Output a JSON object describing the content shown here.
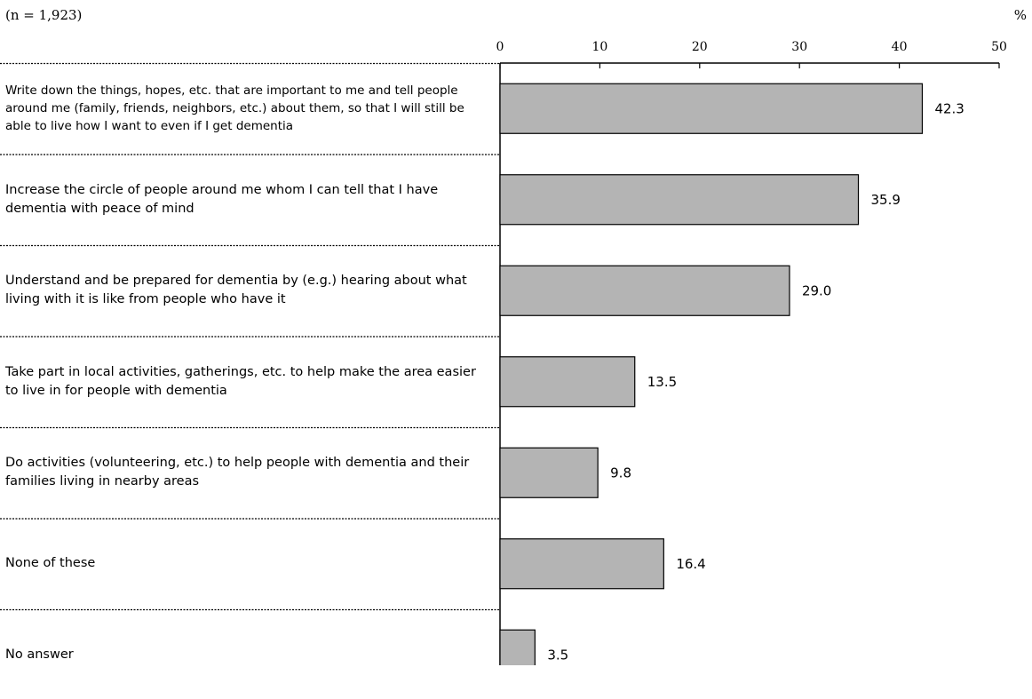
{
  "sample_note": "(n = 1,923)",
  "unit_label": "%",
  "chart_data": {
    "type": "bar",
    "orientation": "horizontal",
    "xlim": [
      0,
      50
    ],
    "ticks": [
      0,
      10,
      20,
      30,
      40,
      50
    ],
    "tick_labels": [
      "0",
      "10",
      "20",
      "30",
      "40",
      "50"
    ],
    "categories": [
      "Write down the things, hopes, etc. that are important to me and tell people around me (family, friends, neighbors, etc.) about them, so that I will still be able to live how I want to even if I get dementia",
      "Increase the circle of people around me whom I can tell that I have dementia with peace of mind",
      "Understand and be prepared for dementia by (e.g.) hearing about what living with it is like from people who have it",
      "Take part in local activities, gatherings, etc. to help make the area easier to live in for people with dementia",
      "Do activities (volunteering, etc.) to help people with dementia and their families living in nearby areas",
      "None of these",
      "No answer"
    ],
    "values": [
      42.3,
      35.9,
      29.0,
      13.5,
      9.8,
      16.4,
      3.5
    ],
    "value_labels": [
      "42.3",
      "35.9",
      "29.0",
      "13.5",
      "9.8",
      "16.4",
      "3.5"
    ],
    "bar_color": "#b4b4b4",
    "bar_edge_color": "#000000",
    "grid": false,
    "legend": "none"
  }
}
